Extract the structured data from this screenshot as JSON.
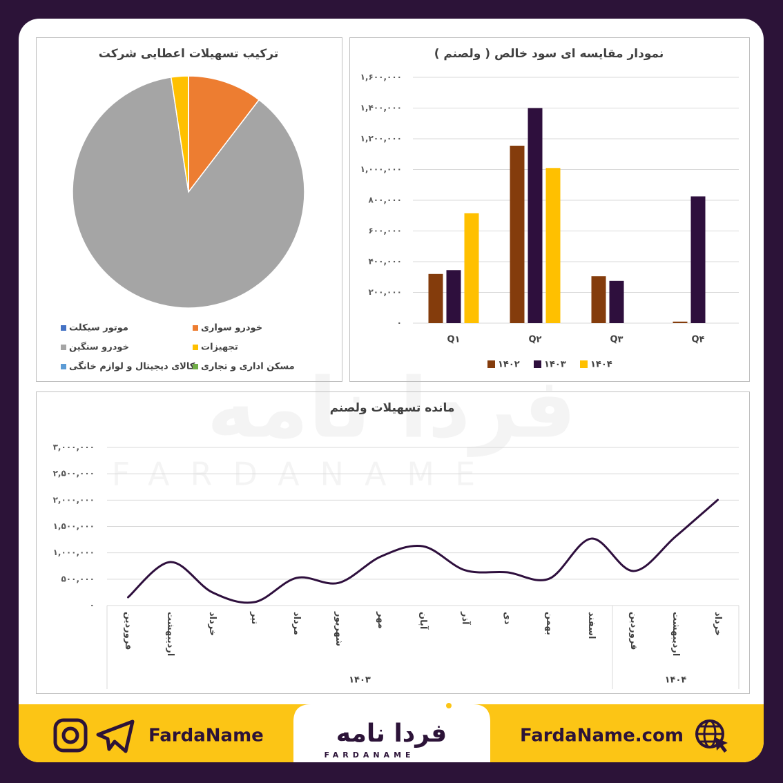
{
  "chart_data": [
    {
      "type": "pie",
      "title": "ترکیب تسهیلات اعطایی شرکت",
      "categories": [
        "موتور سیکلت",
        "خودرو سواری",
        "خودرو سنگین",
        "تجهیزات",
        "کالای دیجیتال و لوازم خانگی",
        "مسکن اداری و تجاری"
      ],
      "values": [
        0,
        10.4,
        87.2,
        2.4,
        0,
        0
      ],
      "colors": [
        "#4472c4",
        "#ed7d31",
        "#a5a5a5",
        "#ffc000",
        "#5b9bd5",
        "#70ad47"
      ]
    },
    {
      "type": "bar",
      "title": "نمودار مقایسه ای سود خالص ( ولصنم )",
      "categories": [
        "Q۱",
        "Q۲",
        "Q۳",
        "Q۴"
      ],
      "series": [
        {
          "name": "۱۴۰۲",
          "color": "#843c0c",
          "values": [
            320000,
            1155000,
            305000,
            10000
          ]
        },
        {
          "name": "۱۴۰۳",
          "color": "#2e0f3d",
          "values": [
            345000,
            1400000,
            275000,
            825000
          ]
        },
        {
          "name": "۱۴۰۴",
          "color": "#ffc000",
          "values": [
            715000,
            1010000,
            null,
            null
          ]
        }
      ],
      "ylim": [
        0,
        1600000
      ],
      "yticks": [
        {
          "value": 0,
          "label": "۰"
        },
        {
          "value": 200000,
          "label": "۲۰۰,۰۰۰"
        },
        {
          "value": 400000,
          "label": "۴۰۰,۰۰۰"
        },
        {
          "value": 600000,
          "label": "۶۰۰,۰۰۰"
        },
        {
          "value": 800000,
          "label": "۸۰۰,۰۰۰"
        },
        {
          "value": 1000000,
          "label": "۱,۰۰۰,۰۰۰"
        },
        {
          "value": 1200000,
          "label": "۱,۲۰۰,۰۰۰"
        },
        {
          "value": 1400000,
          "label": "۱,۴۰۰,۰۰۰"
        },
        {
          "value": 1600000,
          "label": "۱,۶۰۰,۰۰۰"
        }
      ],
      "grid": true
    },
    {
      "type": "line",
      "title": "مانده تسهیلات ولصنم",
      "categories": [
        "فروردین",
        "اردیبهشت",
        "خرداد",
        "تیر",
        "مرداد",
        "شهریور",
        "مهر",
        "آبان",
        "آذر",
        "دی",
        "بهمن",
        "اسفند",
        "فروردین",
        "اردیبهشت",
        "خرداد"
      ],
      "groups": [
        {
          "label": "۱۴۰۳",
          "span": 12
        },
        {
          "label": "۱۴۰۴",
          "span": 3
        }
      ],
      "values": [
        157000,
        825000,
        250000,
        65000,
        525000,
        430000,
        930000,
        1125000,
        670000,
        630000,
        510000,
        1270000,
        655000,
        1310000,
        2005000
      ],
      "color": "#2e0f3d",
      "smooth": true,
      "ylim": [
        0,
        3000000
      ],
      "yticks": [
        {
          "value": 0,
          "label": "۰"
        },
        {
          "value": 500000,
          "label": "۵۰۰,۰۰۰"
        },
        {
          "value": 1000000,
          "label": "۱,۰۰۰,۰۰۰"
        },
        {
          "value": 1500000,
          "label": "۱,۵۰۰,۰۰۰"
        },
        {
          "value": 2000000,
          "label": "۲,۰۰۰,۰۰۰"
        },
        {
          "value": 2500000,
          "label": "۲,۵۰۰,۰۰۰"
        },
        {
          "value": 3000000,
          "label": "۳,۰۰۰,۰۰۰"
        }
      ],
      "grid": true
    }
  ],
  "footer": {
    "social": "FardaName",
    "website": "FardaName.com",
    "logo": "فردا نامه",
    "logo_latin": "FARDANAME"
  }
}
